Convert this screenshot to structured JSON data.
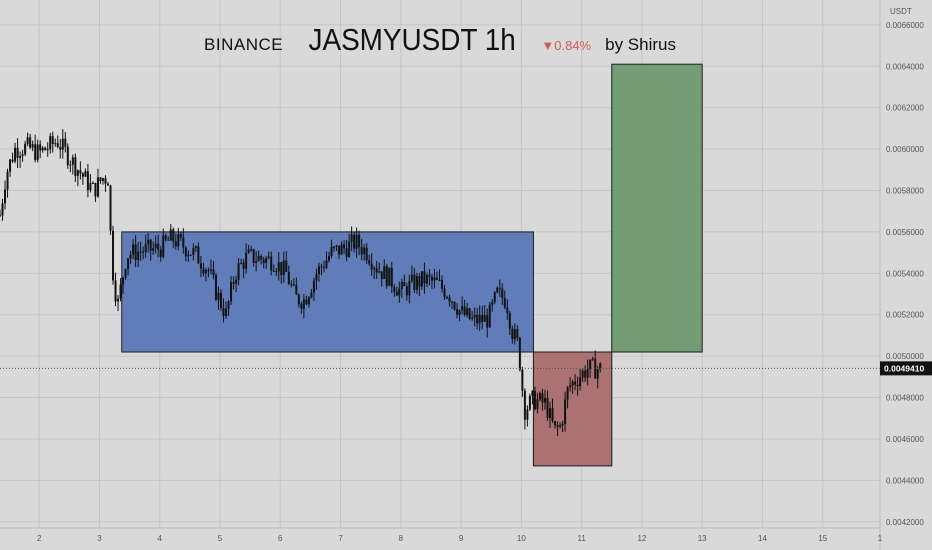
{
  "header": {
    "exchange": "BINANCE",
    "symbol": "JASMYUSDT 1h",
    "change": "▼0.84%",
    "author": "by Shirus"
  },
  "chart_data": {
    "type": "candlestick",
    "title": "JASMYUSDT 1h",
    "currency_label": "USDT",
    "y_ticks": [
      "0.0042000",
      "0.0044000",
      "0.0046000",
      "0.0048000",
      "0.0050000",
      "0.0052000",
      "0.0054000",
      "0.0056000",
      "0.0058000",
      "0.0060000",
      "0.0062000",
      "0.0064000",
      "0.0066000"
    ],
    "ylim": [
      0.00417,
      0.00672
    ],
    "x_ticks": [
      "2",
      "3",
      "4",
      "5",
      "6",
      "7",
      "8",
      "9",
      "10",
      "11",
      "12",
      "13",
      "14",
      "15",
      "1"
    ],
    "xlim": [
      1.35,
      15.95
    ],
    "current_price": "0.0049410",
    "price_path": [
      [
        1.35,
        0.00568
      ],
      [
        1.45,
        0.00588
      ],
      [
        1.6,
        0.006
      ],
      [
        1.8,
        0.00601
      ],
      [
        2.0,
        0.00598
      ],
      [
        2.15,
        0.00601
      ],
      [
        2.3,
        0.00604
      ],
      [
        2.45,
        0.00598
      ],
      [
        2.6,
        0.00592
      ],
      [
        2.75,
        0.00586
      ],
      [
        2.9,
        0.0058
      ],
      [
        3.05,
        0.00586
      ],
      [
        3.15,
        0.00586
      ],
      [
        3.2,
        0.00546
      ],
      [
        3.3,
        0.00524
      ],
      [
        3.45,
        0.00549
      ],
      [
        3.7,
        0.00551
      ],
      [
        4.0,
        0.00552
      ],
      [
        4.2,
        0.00557
      ],
      [
        4.4,
        0.00553
      ],
      [
        4.6,
        0.00549
      ],
      [
        4.8,
        0.00542
      ],
      [
        4.95,
        0.0053
      ],
      [
        5.1,
        0.0052
      ],
      [
        5.25,
        0.0054
      ],
      [
        5.45,
        0.00548
      ],
      [
        5.7,
        0.00547
      ],
      [
        5.9,
        0.00546
      ],
      [
        6.1,
        0.0054
      ],
      [
        6.25,
        0.00528
      ],
      [
        6.4,
        0.00527
      ],
      [
        6.6,
        0.0054
      ],
      [
        6.85,
        0.0055
      ],
      [
        7.05,
        0.00552
      ],
      [
        7.25,
        0.00555
      ],
      [
        7.45,
        0.0055
      ],
      [
        7.6,
        0.00543
      ],
      [
        7.8,
        0.00538
      ],
      [
        8.0,
        0.00531
      ],
      [
        8.2,
        0.00535
      ],
      [
        8.4,
        0.00537
      ],
      [
        8.6,
        0.00535
      ],
      [
        8.8,
        0.0053
      ],
      [
        9.0,
        0.00521
      ],
      [
        9.2,
        0.00517
      ],
      [
        9.45,
        0.00518
      ],
      [
        9.6,
        0.0053
      ],
      [
        9.75,
        0.00527
      ],
      [
        9.85,
        0.00512
      ],
      [
        9.95,
        0.00505
      ],
      [
        10.05,
        0.00474
      ],
      [
        10.2,
        0.00479
      ],
      [
        10.4,
        0.00477
      ],
      [
        10.55,
        0.00464
      ],
      [
        10.65,
        0.00466
      ],
      [
        10.78,
        0.00485
      ],
      [
        10.95,
        0.0049
      ],
      [
        11.1,
        0.00494
      ],
      [
        11.25,
        0.00494
      ],
      [
        11.33,
        0.00494
      ]
    ],
    "positions": [
      {
        "name": "range box",
        "x": [
          3.37,
          10.2
        ],
        "y": [
          0.00502,
          0.0056
        ],
        "fill": "#5a78b8"
      },
      {
        "name": "stop loss",
        "x": [
          10.2,
          11.5
        ],
        "y": [
          0.00447,
          0.00502
        ],
        "fill": "#a96b6e"
      },
      {
        "name": "take profit",
        "x": [
          11.5,
          13.0
        ],
        "y": [
          0.00502,
          0.00641
        ],
        "fill": "#6f9a70"
      }
    ],
    "grid": true
  },
  "colors": {
    "background": "#d9d9d9",
    "candle": "#111111",
    "grid": "#c5c5c5",
    "axis_text": "#555555",
    "last_price_bg": "#111111"
  }
}
